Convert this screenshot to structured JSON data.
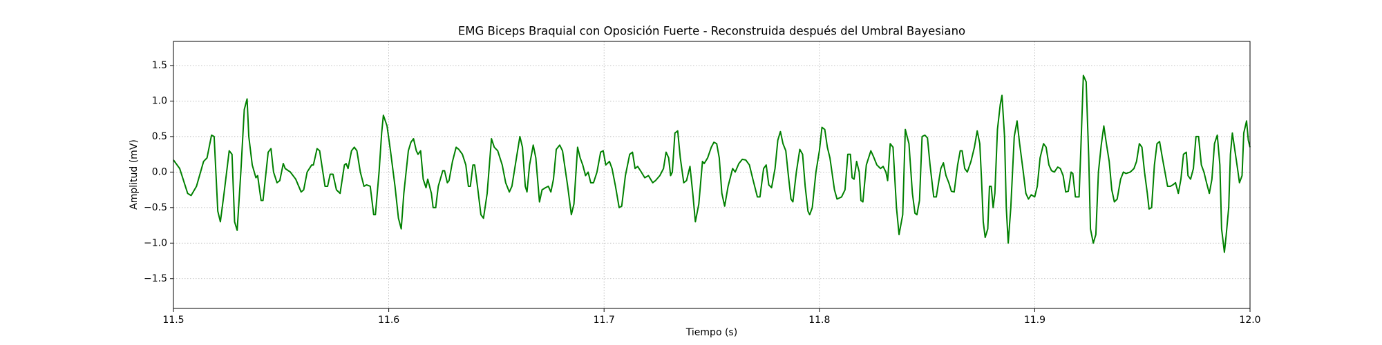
{
  "chart_data": {
    "type": "line",
    "title": "EMG Biceps Braquial con Oposición Fuerte - Reconstruida después del Umbral Bayesiano",
    "xlabel": "Tiempo (s)",
    "ylabel": "Amplitud (mV)",
    "color": "#008000",
    "grid": true,
    "xlim": [
      11.5,
      12.0
    ],
    "ylim": [
      -1.92,
      1.84
    ],
    "xticks": [
      11.5,
      11.6,
      11.7,
      11.8,
      11.9,
      {
        "value": 12,
        "label": "12.0"
      }
    ],
    "yticks": [
      {
        "value": -1.5,
        "label": "−1.5"
      },
      {
        "value": -1,
        "label": "−1.0"
      },
      {
        "value": -0.5,
        "label": "−0.5"
      },
      {
        "value": 0,
        "label": "0.0"
      },
      0.5,
      {
        "value": 1,
        "label": "1.0"
      },
      1.5
    ],
    "x": [
      11.5,
      11.5029,
      11.5066,
      11.5082,
      11.5107,
      11.514,
      11.5156,
      11.5177,
      11.5189,
      11.5206,
      11.5218,
      11.5235,
      11.5259,
      11.5272,
      11.5284,
      11.5296,
      11.5313,
      11.5329,
      11.5342,
      11.535,
      11.5366,
      11.5383,
      11.5391,
      11.5407,
      11.5416,
      11.544,
      11.5453,
      11.5465,
      11.5481,
      11.5494,
      11.551,
      11.5519,
      11.5543,
      11.5568,
      11.5593,
      11.5605,
      11.5621,
      11.5642,
      11.565,
      11.5667,
      11.5679,
      11.5704,
      11.5716,
      11.5728,
      11.5741,
      11.5757,
      11.5774,
      11.5794,
      11.5802,
      11.5811,
      11.5827,
      11.584,
      11.5852,
      11.5868,
      11.5885,
      11.5897,
      11.5914,
      11.593,
      11.5938,
      11.5955,
      11.5967,
      11.5975,
      11.5992,
      11.6008,
      11.6029,
      11.6045,
      11.6058,
      11.607,
      11.6091,
      11.6103,
      11.6115,
      11.6128,
      11.6136,
      11.6148,
      11.616,
      11.6173,
      11.6181,
      11.6198,
      11.6206,
      11.6218,
      11.623,
      11.6251,
      11.6259,
      11.6272,
      11.628,
      11.6296,
      11.6313,
      11.6325,
      11.6342,
      11.6358,
      11.637,
      11.6379,
      11.6391,
      11.6399,
      11.6412,
      11.6428,
      11.644,
      11.6457,
      11.6477,
      11.649,
      11.6506,
      11.6527,
      11.6543,
      11.656,
      11.6572,
      11.6593,
      11.6609,
      11.6621,
      11.6634,
      11.6642,
      11.6654,
      11.6671,
      11.6683,
      11.67,
      11.6712,
      11.6728,
      11.6741,
      11.6753,
      11.6765,
      11.6778,
      11.6794,
      11.6807,
      11.6831,
      11.6848,
      11.686,
      11.6877,
      11.6889,
      11.6901,
      11.6914,
      11.6926,
      11.6938,
      11.6951,
      11.6967,
      11.6984,
      11.6996,
      11.7008,
      11.7025,
      11.7037,
      11.7053,
      11.707,
      11.7082,
      11.7099,
      11.7119,
      11.7132,
      11.7144,
      11.7156,
      11.7173,
      11.7189,
      11.7206,
      11.7226,
      11.7239,
      11.7259,
      11.7276,
      11.7288,
      11.73,
      11.7309,
      11.7317,
      11.7329,
      11.7342,
      11.7354,
      11.737,
      11.7383,
      11.7399,
      11.7412,
      11.7424,
      11.744,
      11.7457,
      11.7465,
      11.7481,
      11.7498,
      11.751,
      11.7523,
      11.7535,
      11.7547,
      11.756,
      11.7576,
      11.7597,
      11.7609,
      11.7626,
      11.7642,
      11.7658,
      11.7675,
      11.7691,
      11.7712,
      11.7724,
      11.7741,
      11.7753,
      11.7765,
      11.7778,
      11.7794,
      11.7807,
      11.7819,
      11.7831,
      11.7844,
      11.7856,
      11.7868,
      11.7877,
      11.7893,
      11.7909,
      11.7922,
      11.7934,
      11.7947,
      11.7955,
      11.7967,
      11.7984,
      11.8,
      11.8012,
      11.8025,
      11.8037,
      11.8049,
      11.807,
      11.8082,
      11.8103,
      11.8119,
      11.8132,
      11.8144,
      11.8152,
      11.8161,
      11.8173,
      11.8185,
      11.8193,
      11.8202,
      11.8218,
      11.8239,
      11.8251,
      11.8267,
      11.8284,
      11.8296,
      11.8309,
      11.8317,
      11.8329,
      11.8342,
      11.8358,
      11.837,
      11.8387,
      11.8399,
      11.8416,
      11.8432,
      11.8444,
      11.8453,
      11.8465,
      11.8477,
      11.849,
      11.8502,
      11.8514,
      11.8531,
      11.8543,
      11.8564,
      11.8576,
      11.8588,
      11.8601,
      11.8613,
      11.8626,
      11.8642,
      11.8654,
      11.8663,
      11.8675,
      11.8687,
      11.8704,
      11.872,
      11.8733,
      11.8745,
      11.8753,
      11.8761,
      11.877,
      11.8782,
      11.879,
      11.8798,
      11.8807,
      11.8815,
      11.8827,
      11.884,
      11.8848,
      11.886,
      11.8868,
      11.8877,
      11.8889,
      11.8905,
      11.8918,
      11.893,
      11.8947,
      11.8959,
      11.8971,
      11.8984,
      11.9,
      11.9012,
      11.9025,
      11.9041,
      11.9053,
      11.9066,
      11.9078,
      11.9091,
      11.9107,
      11.9119,
      11.9132,
      11.9144,
      11.9156,
      11.9169,
      11.9177,
      11.9189,
      11.9206,
      11.9214,
      11.9226,
      11.9239,
      11.9251,
      11.9259,
      11.9272,
      11.9284,
      11.9296,
      11.9309,
      11.9321,
      11.9333,
      11.9346,
      11.9358,
      11.937,
      11.9383,
      11.9399,
      11.9412,
      11.9424,
      11.9444,
      11.9461,
      11.9473,
      11.9486,
      11.9498,
      11.951,
      11.9523,
      11.9531,
      11.9543,
      11.9556,
      11.9568,
      11.958,
      11.9593,
      11.9605,
      11.9617,
      11.963,
      11.9642,
      11.9654,
      11.9667,
      11.9679,
      11.9691,
      11.9704,
      11.9712,
      11.9724,
      11.9737,
      11.9749,
      11.9761,
      11.9774,
      11.9786,
      11.9798,
      11.9811,
      11.9823,
      11.9835,
      11.9848,
      11.986,
      11.9868,
      11.9881,
      11.9889,
      11.9901,
      11.9909,
      11.9918,
      11.993,
      11.9942,
      11.9951,
      11.9963,
      11.9971,
      11.9984,
      11.9992,
      12.0
    ],
    "values": [
      0.17,
      0.05,
      -0.3,
      -0.33,
      -0.2,
      0.15,
      0.2,
      0.52,
      0.5,
      -0.55,
      -0.7,
      -0.3,
      0.3,
      0.25,
      -0.7,
      -0.82,
      0.0,
      0.88,
      1.03,
      0.5,
      0.1,
      -0.08,
      -0.05,
      -0.4,
      -0.4,
      0.28,
      0.33,
      0.0,
      -0.15,
      -0.12,
      0.12,
      0.05,
      0.0,
      -0.1,
      -0.28,
      -0.25,
      0.0,
      0.1,
      0.1,
      0.33,
      0.3,
      -0.2,
      -0.2,
      -0.03,
      -0.03,
      -0.25,
      -0.3,
      0.1,
      0.12,
      0.05,
      0.3,
      0.35,
      0.3,
      0.0,
      -0.2,
      -0.18,
      -0.2,
      -0.6,
      -0.6,
      0.0,
      0.55,
      0.8,
      0.65,
      0.3,
      -0.2,
      -0.65,
      -0.8,
      -0.3,
      0.3,
      0.42,
      0.47,
      0.3,
      0.25,
      0.3,
      -0.1,
      -0.22,
      -0.1,
      -0.3,
      -0.5,
      -0.5,
      -0.2,
      0.02,
      0.02,
      -0.15,
      -0.12,
      0.15,
      0.35,
      0.32,
      0.25,
      0.1,
      -0.2,
      -0.2,
      0.1,
      0.1,
      -0.2,
      -0.6,
      -0.65,
      -0.3,
      0.47,
      0.35,
      0.3,
      0.1,
      -0.15,
      -0.28,
      -0.2,
      0.2,
      0.5,
      0.35,
      -0.2,
      -0.28,
      0.1,
      0.38,
      0.2,
      -0.42,
      -0.25,
      -0.22,
      -0.2,
      -0.28,
      -0.1,
      0.32,
      0.38,
      0.3,
      -0.2,
      -0.6,
      -0.45,
      0.35,
      0.2,
      0.1,
      -0.05,
      0.0,
      -0.15,
      -0.15,
      0.0,
      0.28,
      0.3,
      0.1,
      0.15,
      0.05,
      -0.2,
      -0.5,
      -0.48,
      -0.05,
      0.25,
      0.28,
      0.05,
      0.08,
      0.0,
      -0.08,
      -0.05,
      -0.15,
      -0.12,
      -0.05,
      0.05,
      0.28,
      0.2,
      -0.05,
      0.0,
      0.55,
      0.58,
      0.2,
      -0.15,
      -0.12,
      0.08,
      -0.3,
      -0.7,
      -0.45,
      0.15,
      0.12,
      0.2,
      0.35,
      0.42,
      0.4,
      0.2,
      -0.3,
      -0.48,
      -0.2,
      0.05,
      0.0,
      0.12,
      0.18,
      0.17,
      0.1,
      -0.1,
      -0.35,
      -0.35,
      0.05,
      0.1,
      -0.18,
      -0.22,
      0.05,
      0.45,
      0.57,
      0.4,
      0.3,
      -0.05,
      -0.38,
      -0.42,
      0.0,
      0.32,
      0.25,
      -0.2,
      -0.55,
      -0.6,
      -0.5,
      0.0,
      0.3,
      0.63,
      0.6,
      0.35,
      0.2,
      -0.25,
      -0.38,
      -0.35,
      -0.25,
      0.25,
      0.25,
      -0.08,
      -0.1,
      0.15,
      0.0,
      -0.4,
      -0.42,
      0.1,
      0.3,
      0.22,
      0.1,
      0.05,
      0.08,
      0.0,
      -0.12,
      0.4,
      0.35,
      -0.5,
      -0.88,
      -0.6,
      0.6,
      0.4,
      -0.3,
      -0.58,
      -0.6,
      -0.4,
      0.5,
      0.52,
      0.48,
      0.1,
      -0.35,
      -0.35,
      0.05,
      0.13,
      -0.05,
      -0.15,
      -0.27,
      -0.28,
      0.1,
      0.3,
      0.3,
      0.05,
      0.0,
      0.15,
      0.35,
      0.58,
      0.4,
      -0.1,
      -0.7,
      -0.92,
      -0.8,
      -0.2,
      -0.2,
      -0.5,
      -0.3,
      0.6,
      0.95,
      1.08,
      0.5,
      -0.5,
      -1.0,
      -0.5,
      0.5,
      0.72,
      0.4,
      0.0,
      -0.3,
      -0.38,
      -0.32,
      -0.35,
      -0.2,
      0.2,
      0.4,
      0.35,
      0.1,
      0.02,
      0.0,
      0.07,
      0.05,
      -0.05,
      -0.28,
      -0.27,
      0.0,
      -0.02,
      -0.35,
      -0.35,
      0.3,
      1.36,
      1.27,
      0.2,
      -0.8,
      -1.0,
      -0.88,
      0.0,
      0.38,
      0.65,
      0.4,
      0.15,
      -0.25,
      -0.42,
      -0.38,
      -0.1,
      0.0,
      -0.02,
      0.0,
      0.05,
      0.15,
      0.4,
      0.35,
      0.0,
      -0.3,
      -0.52,
      -0.5,
      0.1,
      0.4,
      0.43,
      0.2,
      0.0,
      -0.2,
      -0.2,
      -0.18,
      -0.15,
      -0.3,
      -0.1,
      0.25,
      0.28,
      -0.05,
      -0.1,
      0.05,
      0.5,
      0.5,
      0.1,
      0.0,
      -0.15,
      -0.3,
      -0.1,
      0.4,
      0.52,
      0.1,
      -0.8,
      -1.13,
      -0.9,
      -0.5,
      0.25,
      0.55,
      0.3,
      0.05,
      -0.15,
      -0.05,
      0.55,
      0.72,
      0.45,
      0.35
    ]
  }
}
